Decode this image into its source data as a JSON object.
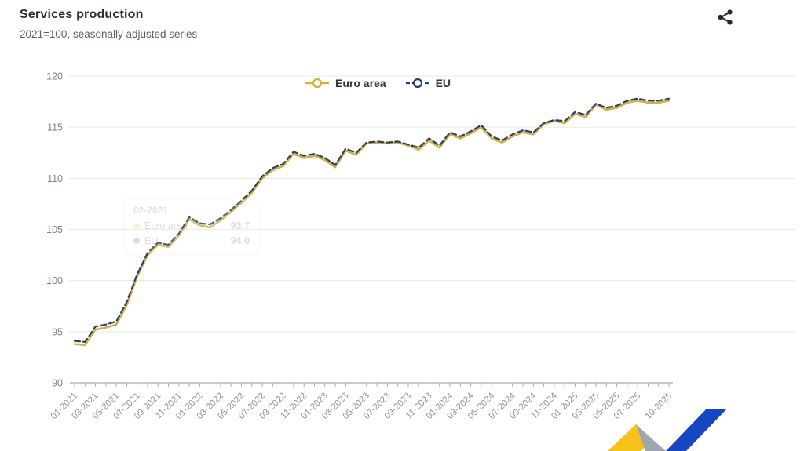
{
  "header": {
    "title": "Services production",
    "subtitle": "2021=100, seasonally adjusted series"
  },
  "toolbar": {
    "share_icon": "share-nodes",
    "share_color": "#20273a"
  },
  "tooltip": {
    "date": "02-2021",
    "rows": [
      {
        "name": "Euro area",
        "value": "93.7",
        "color": "#d4af3a"
      },
      {
        "name": "EU",
        "value": "94.0",
        "color": "#2a3e6f"
      }
    ]
  },
  "logo": {
    "name": "eurostat-ribbon-logo",
    "yellow": "#f5c21b",
    "gray": "#a0a6ad",
    "blue": "#1747c0"
  },
  "chart_data": {
    "type": "line",
    "title": "Services production",
    "subtitle": "2021=100, seasonally adjusted series",
    "grid": true,
    "legend_position": "top-center",
    "ylim": [
      90,
      120
    ],
    "yticks": [
      90,
      95,
      100,
      105,
      110,
      115,
      120
    ],
    "x": [
      "01-2021",
      "02-2021",
      "03-2021",
      "04-2021",
      "05-2021",
      "06-2021",
      "07-2021",
      "08-2021",
      "09-2021",
      "10-2021",
      "11-2021",
      "12-2021",
      "01-2022",
      "02-2022",
      "03-2022",
      "04-2022",
      "05-2022",
      "06-2022",
      "07-2022",
      "08-2022",
      "09-2022",
      "10-2022",
      "11-2022",
      "12-2022",
      "01-2023",
      "02-2023",
      "03-2023",
      "04-2023",
      "05-2023",
      "06-2023",
      "07-2023",
      "08-2023",
      "09-2023",
      "10-2023",
      "11-2023",
      "12-2023",
      "01-2024",
      "02-2024",
      "03-2024",
      "04-2024",
      "05-2024",
      "06-2024",
      "07-2024",
      "08-2024",
      "09-2024",
      "10-2024",
      "11-2024",
      "12-2024",
      "01-2025",
      "02-2025",
      "03-2025",
      "04-2025",
      "05-2025",
      "06-2025",
      "07-2025",
      "08-2025",
      "09-2025",
      "10-2025"
    ],
    "xtick_labels": [
      "01-2021",
      "03-2021",
      "05-2021",
      "07-2021",
      "09-2021",
      "11-2021",
      "01-2022",
      "03-2022",
      "05-2022",
      "07-2022",
      "09-2022",
      "11-2022",
      "01-2023",
      "03-2023",
      "05-2023",
      "07-2023",
      "09-2023",
      "11-2023",
      "01-2024",
      "03-2024",
      "05-2024",
      "07-2024",
      "09-2024",
      "11-2024",
      "01-2025",
      "03-2025",
      "05-2025",
      "07-2025",
      "10-2025"
    ],
    "series": [
      {
        "name": "Euro area",
        "color": "#d4af3a",
        "dash": null,
        "values": [
          93.8,
          93.7,
          95.2,
          95.4,
          95.7,
          97.6,
          100.4,
          102.5,
          103.5,
          103.3,
          104.4,
          106.0,
          105.4,
          105.2,
          105.9,
          106.7,
          107.6,
          108.6,
          110.0,
          110.8,
          111.2,
          112.4,
          112.0,
          112.2,
          111.8,
          111.1,
          112.7,
          112.3,
          113.4,
          113.5,
          113.4,
          113.5,
          113.2,
          112.8,
          113.7,
          113.0,
          114.3,
          113.9,
          114.4,
          115.0,
          113.9,
          113.5,
          114.1,
          114.5,
          114.3,
          115.3,
          115.6,
          115.4,
          116.3,
          116.0,
          117.2,
          116.7,
          116.9,
          117.4,
          117.6,
          117.4,
          117.4,
          117.6
        ]
      },
      {
        "name": "EU",
        "color": "#2a3e6f",
        "dash": "7,4",
        "values": [
          94.1,
          94.0,
          95.5,
          95.7,
          96.0,
          97.9,
          100.6,
          102.7,
          103.7,
          103.5,
          104.6,
          106.2,
          105.6,
          105.5,
          106.1,
          106.9,
          107.8,
          108.8,
          110.2,
          111.0,
          111.4,
          112.6,
          112.2,
          112.4,
          112.0,
          111.3,
          112.9,
          112.5,
          113.5,
          113.6,
          113.5,
          113.6,
          113.3,
          113.0,
          113.9,
          113.2,
          114.5,
          114.1,
          114.6,
          115.2,
          114.1,
          113.7,
          114.3,
          114.7,
          114.5,
          115.4,
          115.7,
          115.6,
          116.5,
          116.2,
          117.3,
          116.9,
          117.1,
          117.6,
          117.8,
          117.6,
          117.6,
          117.8
        ]
      }
    ],
    "style": {
      "grid_color": "#e7e8ea",
      "axis_color": "#a8adb3",
      "ytick_color": "#7c8289",
      "xtick_color": "#8f949b"
    }
  }
}
